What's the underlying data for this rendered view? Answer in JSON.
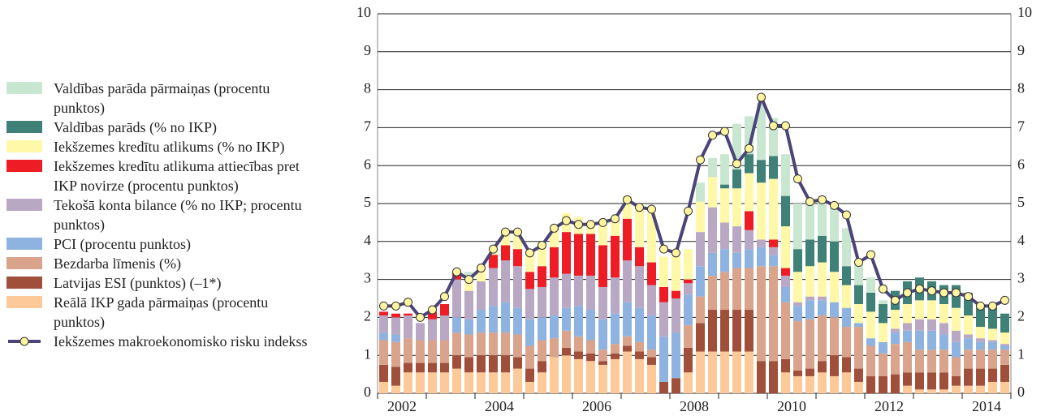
{
  "chart_data": {
    "type": "bar",
    "categories": [
      null,
      "2002",
      null,
      null,
      null,
      null,
      null,
      null,
      null,
      "2004",
      null,
      null,
      null,
      null,
      null,
      null,
      null,
      "2006",
      null,
      null,
      null,
      null,
      null,
      null,
      null,
      "2008",
      null,
      null,
      null,
      null,
      null,
      null,
      null,
      "2010",
      null,
      null,
      null,
      null,
      null,
      null,
      null,
      "2012",
      null,
      null,
      null,
      null,
      null,
      null,
      null,
      "2014",
      null,
      null
    ],
    "ylim": [
      0,
      10
    ],
    "yticks": [
      0,
      1,
      2,
      3,
      4,
      5,
      6,
      7,
      8,
      9,
      10
    ],
    "grid": true,
    "series": [
      {
        "name": "Reālā IKP gada pārmaiņas (procentu punktos)",
        "color": "#fdc998",
        "values": [
          0.3,
          0.2,
          0.55,
          0.55,
          0.55,
          0.55,
          0.65,
          0.55,
          0.55,
          0.55,
          0.55,
          0.65,
          0.3,
          0.55,
          0.95,
          1.0,
          0.9,
          0.85,
          0.75,
          0.9,
          1.1,
          0.9,
          0.75,
          0,
          0,
          0.55,
          1.1,
          1.1,
          1.1,
          1.1,
          1.1,
          0,
          0,
          0.55,
          0.45,
          0.45,
          0.55,
          0.45,
          0.55,
          0.3,
          0,
          0,
          0,
          0.2,
          0.1,
          0.1,
          0.1,
          0.2,
          0.2,
          0.2,
          0.3,
          0.3
        ]
      },
      {
        "name": "Latvijas ESI (punktos) (–1*)",
        "color": "#a0503a",
        "values": [
          0.45,
          0.5,
          0.25,
          0.25,
          0.25,
          0.25,
          0.35,
          0.4,
          0.45,
          0.45,
          0.45,
          0.3,
          0.35,
          0.3,
          0,
          0.2,
          0.2,
          0.2,
          0.1,
          0.15,
          0.15,
          0.2,
          0.2,
          0.3,
          0.4,
          0.65,
          0.75,
          1.1,
          1.1,
          1.1,
          1.1,
          0.85,
          0.85,
          0.35,
          0.15,
          0.2,
          0.3,
          0.55,
          0.4,
          0.35,
          0.45,
          0.45,
          0.5,
          0.35,
          0.45,
          0.45,
          0.45,
          0.25,
          0.45,
          0.45,
          0.35,
          0.45
        ]
      },
      {
        "name": "Bezdarba līmenis (%)",
        "color": "#d9a38c",
        "values": [
          0.65,
          0.65,
          0.65,
          0.6,
          0.6,
          0.6,
          0.6,
          0.6,
          0.6,
          0.6,
          0.6,
          0.6,
          0.6,
          0.55,
          0.5,
          0.45,
          0.4,
          0.35,
          0.3,
          0.25,
          0.25,
          0.25,
          0.2,
          0,
          0,
          0.6,
          0.7,
          0.9,
          1.0,
          1.1,
          1.1,
          2.5,
          2.5,
          1.5,
          1.3,
          1.3,
          1.2,
          1.0,
          0.8,
          1.1,
          0.8,
          0.6,
          0.8,
          0.8,
          0.6,
          0.6,
          0.6,
          0.5,
          0.5,
          0.5,
          0.5,
          0.4
        ]
      },
      {
        "name": "PCI (procentu punktos)",
        "color": "#8fb3e0",
        "values": [
          0.2,
          0.2,
          0,
          0,
          0,
          0,
          0.4,
          0.4,
          0.6,
          0.7,
          0.8,
          0.7,
          0.7,
          0.6,
          0.6,
          0.6,
          0.8,
          0.8,
          0.8,
          0.8,
          0.9,
          0.9,
          0.9,
          1.2,
          1.2,
          0.8,
          0.8,
          0.6,
          0.6,
          0.4,
          0.5,
          0.5,
          0.3,
          0.4,
          0.4,
          0.5,
          0.4,
          0.4,
          0.5,
          0.1,
          0.2,
          0.3,
          0.3,
          0.3,
          0.5,
          0.5,
          0.4,
          0.4,
          0.3,
          0.2,
          0.2,
          0.1
        ]
      },
      {
        "name": "Tekošā konta bilance (% no IKP; procentu punktos)",
        "color": "#b9a8c4",
        "values": [
          0.45,
          0.45,
          0.6,
          0.45,
          0.55,
          0.65,
          1.0,
          0.75,
          0.75,
          1.0,
          1.1,
          1.1,
          0.8,
          0.8,
          1.0,
          0.9,
          0.8,
          0.9,
          0.85,
          0.95,
          1.1,
          1.1,
          0.8,
          0.9,
          0.9,
          0.3,
          0.9,
          1.2,
          0.7,
          0.7,
          0.5,
          0.2,
          0.2,
          0.3,
          0.1,
          0.1,
          0.1,
          0,
          0,
          0,
          0,
          0,
          0.1,
          0.2,
          0.3,
          0.3,
          0.3,
          0.3,
          0.1,
          0.1,
          0.05,
          0.05
        ]
      },
      {
        "name": "Iekšzemes kredītu atlikuma attiecības pret IKP novirze (procentu punktos)",
        "color": "#ee1c25",
        "values": [
          0.1,
          0.1,
          0.05,
          0,
          0.2,
          0.3,
          0.2,
          0,
          0,
          0.35,
          0.4,
          0.45,
          0.45,
          0.55,
          0.8,
          1.1,
          1.1,
          1.1,
          1.1,
          1.1,
          1.1,
          0.5,
          0.6,
          0.4,
          0.2,
          0.1,
          0,
          0,
          0,
          0,
          0.5,
          0,
          0.2,
          0.2,
          0,
          0,
          0,
          0,
          0,
          0,
          0,
          0,
          0,
          0,
          0,
          0,
          0,
          0,
          0,
          0,
          0,
          0
        ]
      },
      {
        "name": "Iekšzemes kredītu atlikums (% no IKP)",
        "color": "#fff8a8",
        "values": [
          0,
          0,
          0,
          0,
          0,
          0,
          0,
          0.3,
          0.3,
          0.15,
          0.3,
          0.4,
          0.5,
          0.6,
          0.5,
          0.5,
          0.45,
          0.3,
          0.5,
          0.45,
          0.6,
          1.0,
          1.3,
          0.8,
          0.9,
          0.8,
          0.8,
          0.8,
          0.9,
          1.0,
          1.0,
          1.5,
          1.6,
          1.1,
          0.8,
          0.8,
          0.9,
          0.8,
          0.6,
          0.5,
          0.7,
          0.5,
          0.5,
          0.5,
          0.5,
          0.5,
          0.5,
          0.6,
          0.5,
          0.3,
          0.3,
          0.3
        ]
      },
      {
        "name": "Valdības parāds (% no IKP)",
        "color": "#3f8077",
        "values": [
          0,
          0,
          0,
          0,
          0,
          0,
          0,
          0,
          0,
          0,
          0,
          0,
          0,
          0,
          0,
          0,
          0,
          0,
          0,
          0,
          0,
          0,
          0,
          0,
          0,
          0,
          0,
          0,
          0.1,
          0.5,
          0.5,
          0.6,
          0.6,
          0.8,
          0.6,
          0.7,
          0.7,
          0.8,
          0.5,
          0.5,
          0.5,
          0.5,
          0.5,
          0.6,
          0.6,
          0.5,
          0.5,
          0.6,
          0.6,
          0.5,
          0.6,
          0.5
        ]
      },
      {
        "name": "Valdības parāda pārmaiņas (procentu punktos)",
        "color": "#c9e6d0",
        "values": [
          0,
          0,
          0,
          0,
          0,
          0,
          0,
          0.2,
          0,
          0,
          0,
          0,
          0,
          0,
          0,
          0,
          0,
          0,
          0,
          0,
          0,
          0,
          0,
          0,
          0,
          0,
          0.5,
          0.5,
          0.8,
          1.2,
          1.0,
          1.5,
          1.0,
          1.1,
          1.2,
          1.0,
          1.0,
          1.0,
          1.0,
          0.6,
          0.4,
          0.1,
          0,
          0,
          0,
          0,
          0,
          0,
          0,
          0,
          0,
          0
        ]
      }
    ],
    "line": {
      "name": "Iekšzemes makroekonomisko risku indekss",
      "color": "#4a4478",
      "marker_color": "#fff5a0",
      "values": [
        2.3,
        2.3,
        2.4,
        2.0,
        2.2,
        2.55,
        3.2,
        3.0,
        3.3,
        3.8,
        4.25,
        4.25,
        3.7,
        3.9,
        4.35,
        4.55,
        4.45,
        4.45,
        4.5,
        4.6,
        5.1,
        4.9,
        4.85,
        3.8,
        3.7,
        4.8,
        6.15,
        6.8,
        6.9,
        6.05,
        6.45,
        7.8,
        7.05,
        7.05,
        5.65,
        5.05,
        5.1,
        4.95,
        4.7,
        3.45,
        3.65,
        2.75,
        2.45,
        2.65,
        2.75,
        2.7,
        2.65,
        2.65,
        2.55,
        2.3,
        2.3,
        2.45
      ]
    }
  }
}
